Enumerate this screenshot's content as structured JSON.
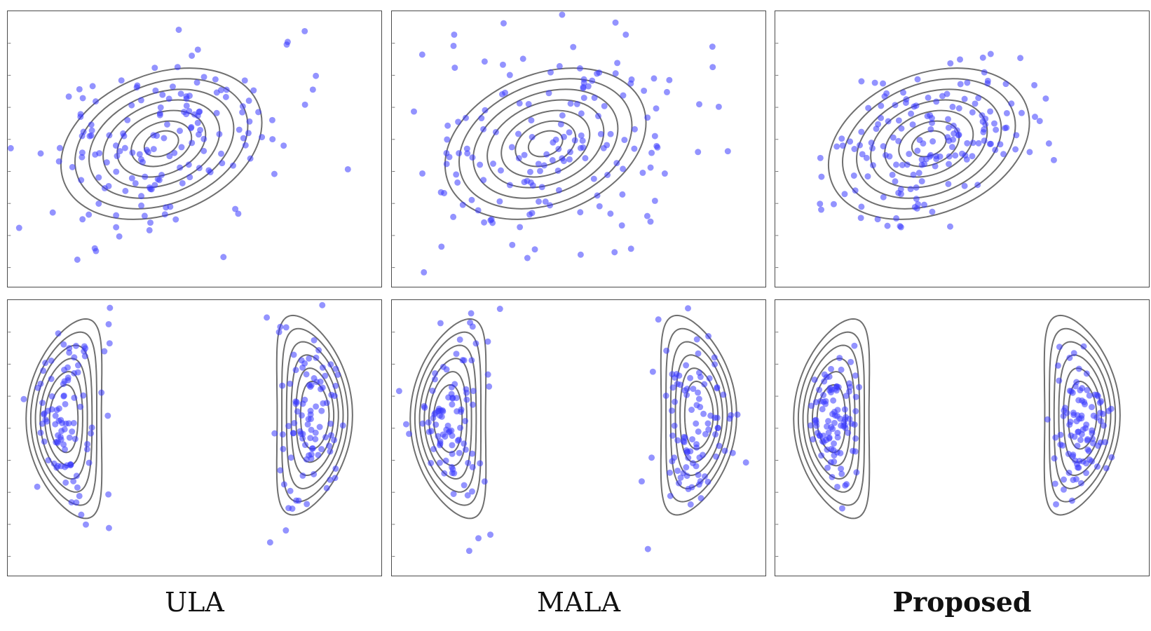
{
  "labels": {
    "col1": "ULA",
    "col2": "MALA",
    "col3": "Proposed"
  },
  "colors": {
    "sample": "#3b3bff",
    "contour": "#6f6f6f",
    "frame": "#4a4a4a"
  },
  "chart_data": [
    {
      "type": "scatter",
      "row": "top",
      "method": "ULA",
      "target": "gaussian",
      "n_samples": 170,
      "seed": 11,
      "spread": 1.35
    },
    {
      "type": "scatter",
      "row": "top",
      "method": "MALA",
      "target": "gaussian",
      "n_samples": 170,
      "seed": 23,
      "spread": 1.45
    },
    {
      "type": "scatter",
      "row": "top",
      "method": "Proposed",
      "target": "gaussian",
      "n_samples": 170,
      "seed": 37,
      "spread": 1.0
    },
    {
      "type": "scatter",
      "row": "bottom",
      "method": "ULA",
      "target": "banana-mixture",
      "n_samples": 200,
      "seed": 41,
      "spread": 1.2
    },
    {
      "type": "scatter",
      "row": "bottom",
      "method": "MALA",
      "target": "banana-mixture",
      "n_samples": 200,
      "seed": 53,
      "spread": 1.35
    },
    {
      "type": "scatter",
      "row": "bottom",
      "method": "Proposed",
      "target": "banana-mixture",
      "n_samples": 200,
      "seed": 67,
      "spread": 0.85
    }
  ]
}
